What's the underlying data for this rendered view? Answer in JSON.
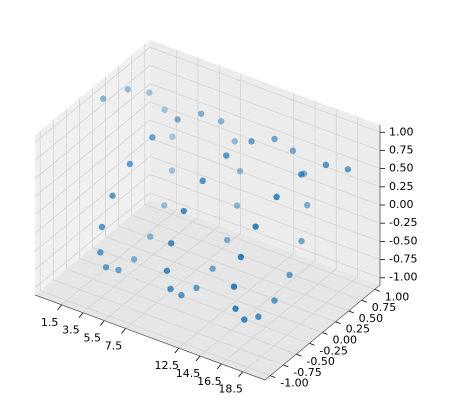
{
  "chart_data": {
    "type": "scatter3d",
    "color": "#1f77b4",
    "depthshade": true,
    "x": [
      0,
      0.4,
      0.8,
      1.2,
      1.6,
      2.0,
      2.4,
      2.8,
      3.2,
      3.6,
      4.0,
      4.4,
      4.8,
      5.2,
      5.6,
      6.0,
      6.4,
      6.8,
      7.2,
      7.6,
      8.0,
      8.4,
      8.8,
      9.2,
      9.6,
      10.0,
      10.4,
      10.8,
      11.2,
      11.6,
      12.0,
      12.4,
      12.8,
      13.2,
      13.6,
      14.0,
      14.4,
      14.8,
      15.2,
      15.6,
      16.0,
      16.4,
      16.8,
      17.2,
      17.6,
      18.0,
      18.4,
      18.8,
      19.2,
      19.6
    ],
    "y": [
      0,
      0.39,
      0.72,
      0.93,
      1.0,
      0.91,
      0.68,
      0.33,
      -0.06,
      -0.44,
      -0.76,
      -0.95,
      -1.0,
      -0.88,
      -0.63,
      -0.28,
      0.12,
      0.49,
      0.79,
      0.97,
      0.99,
      0.85,
      0.58,
      0.22,
      -0.17,
      -0.54,
      -0.83,
      -0.98,
      -0.98,
      -0.82,
      -0.54,
      -0.17,
      0.23,
      0.59,
      0.86,
      0.99,
      0.97,
      0.78,
      0.47,
      0.1,
      -0.29,
      -0.64,
      -0.89,
      -1.0,
      -0.95,
      -0.75,
      -0.43,
      -0.04,
      0.35,
      0.69
    ],
    "z": [
      1,
      0.92,
      0.7,
      0.36,
      -0.03,
      -0.42,
      -0.74,
      -0.94,
      -1.0,
      -0.9,
      -0.65,
      -0.31,
      0.09,
      0.47,
      0.78,
      0.96,
      0.99,
      0.87,
      0.61,
      0.25,
      -0.15,
      -0.52,
      -0.81,
      -0.97,
      -0.98,
      -0.84,
      -0.56,
      -0.2,
      0.2,
      0.57,
      0.84,
      0.99,
      0.97,
      0.81,
      0.51,
      0.14,
      -0.26,
      -0.62,
      -0.88,
      -0.99,
      -0.96,
      -0.77,
      -0.45,
      -0.06,
      0.34,
      0.66,
      0.9,
      1.0,
      0.92,
      0.68
    ],
    "xlim": [
      -1,
      20.6
    ],
    "ylim": [
      -1.1,
      1.1
    ],
    "zlim": [
      -1.1,
      1.1
    ],
    "xticks": [
      1.5,
      3.5,
      5.5,
      7.5,
      12.5,
      14.5,
      16.5,
      18.5
    ],
    "yticks": [
      {
        "value": -1,
        "label": "-1.00"
      },
      -0.75,
      {
        "value": -0.5,
        "label": "-0.50"
      },
      -0.25,
      {
        "value": 0,
        "label": "0.00"
      },
      0.25,
      {
        "value": 0.5,
        "label": "0.50"
      },
      0.75,
      {
        "value": 1,
        "label": "1.00"
      }
    ],
    "zticks": [
      {
        "value": -1,
        "label": "-1.00"
      },
      -0.75,
      {
        "value": -0.5,
        "label": "-0.50"
      },
      -0.25,
      {
        "value": 0,
        "label": "0.00"
      },
      0.25,
      {
        "value": 0.5,
        "label": "0.50"
      },
      0.75,
      {
        "value": 1,
        "label": "1.00"
      }
    ],
    "grid": true
  }
}
